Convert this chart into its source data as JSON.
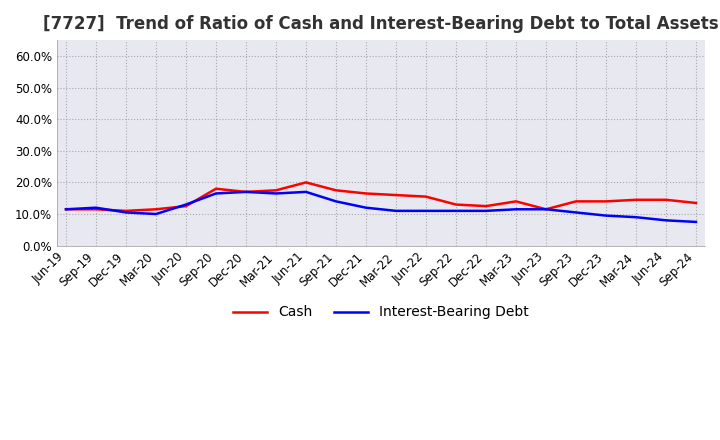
{
  "title": "[7727]  Trend of Ratio of Cash and Interest-Bearing Debt to Total Assets",
  "x_labels": [
    "Jun-19",
    "Sep-19",
    "Dec-19",
    "Mar-20",
    "Jun-20",
    "Sep-20",
    "Dec-20",
    "Mar-21",
    "Jun-21",
    "Sep-21",
    "Dec-21",
    "Mar-22",
    "Jun-22",
    "Sep-22",
    "Dec-22",
    "Mar-23",
    "Jun-23",
    "Sep-23",
    "Dec-23",
    "Mar-24",
    "Jun-24",
    "Sep-24"
  ],
  "cash": [
    11.5,
    11.5,
    11.0,
    11.5,
    12.5,
    18.0,
    17.0,
    17.5,
    20.0,
    17.5,
    16.5,
    16.0,
    15.5,
    13.0,
    12.5,
    14.0,
    11.5,
    14.0,
    14.0,
    14.5,
    14.5,
    13.5
  ],
  "interest_bearing_debt": [
    11.5,
    12.0,
    10.5,
    10.0,
    13.0,
    16.5,
    17.0,
    16.5,
    17.0,
    14.0,
    12.0,
    11.0,
    11.0,
    11.0,
    11.0,
    11.5,
    11.5,
    10.5,
    9.5,
    9.0,
    8.0,
    7.5
  ],
  "cash_color": "#ff0000",
  "debt_color": "#0000ff",
  "ylim": [
    0.0,
    65.0
  ],
  "yticks": [
    0.0,
    10.0,
    20.0,
    30.0,
    40.0,
    50.0,
    60.0
  ],
  "background_color": "#ffffff",
  "plot_bg_color": "#e8e8f0",
  "grid_color": "#aaaaaa",
  "title_fontsize": 12,
  "tick_fontsize": 8.5,
  "legend_fontsize": 10
}
